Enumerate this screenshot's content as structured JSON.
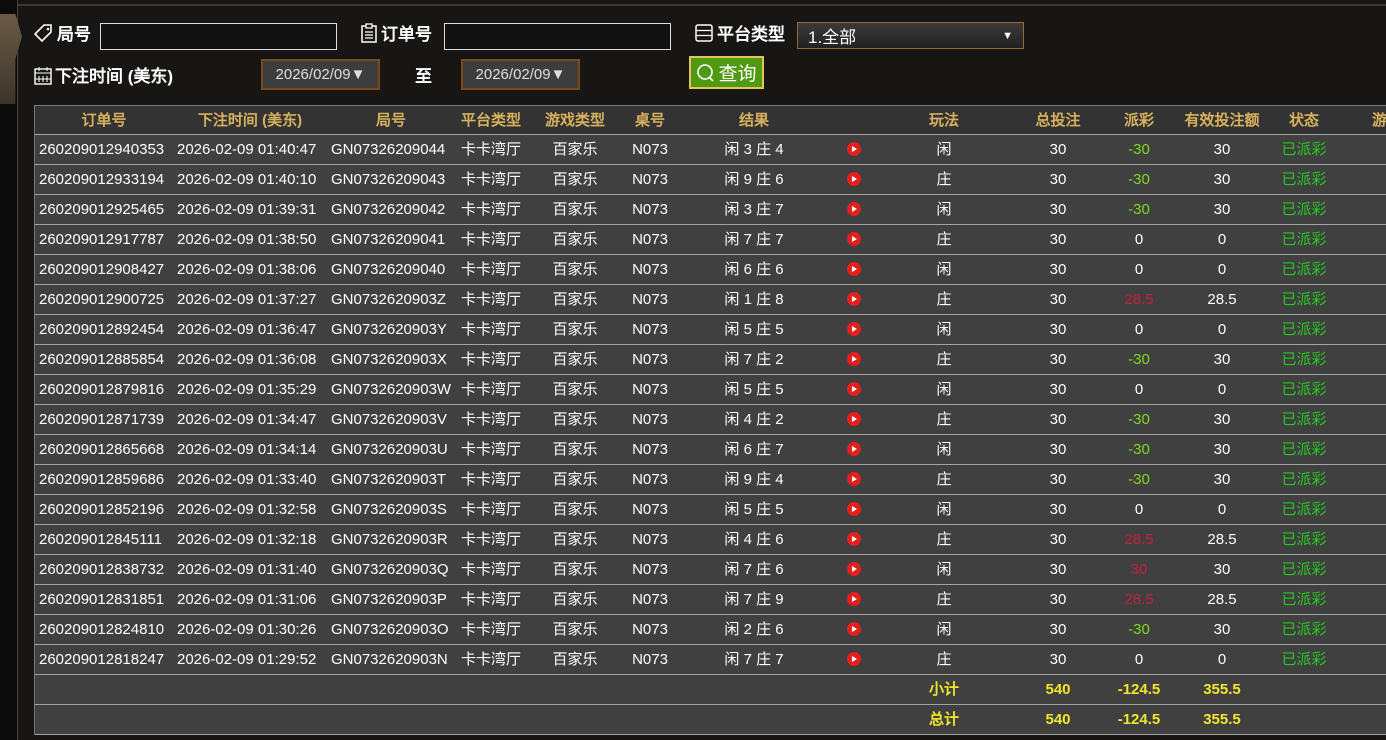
{
  "filters": {
    "round_label": "局号",
    "round_value": "",
    "order_label": "订单号",
    "order_value": "",
    "platform_label": "平台类型",
    "platform_value": "1.全部",
    "time_label": "下注时间 (美东)",
    "date_from": "2026/02/09▼",
    "to_label": "至",
    "date_to": "2026/02/09▼",
    "query_label": "查询"
  },
  "icons": {
    "round": "tag-icon",
    "order": "clipboard-icon",
    "platform": "server-icon",
    "time": "calendar-icon",
    "query": "search-icon",
    "replay": "play-icon"
  },
  "colors": {
    "header_text": "#d7b15c",
    "negative": "#7fd81b",
    "positive": "#c4203c",
    "status": "#26c81e",
    "summary": "#f0e62a",
    "query_button": "#4f9a12"
  },
  "table": {
    "headers": [
      "订单号",
      "下注时间 (美东)",
      "局号",
      "平台类型",
      "游戏类型",
      "桌号",
      "结果",
      "",
      "玩法",
      "总投注",
      "派彩",
      "有效投注额",
      "状态",
      "游戏"
    ],
    "rows": [
      [
        "260209012940353",
        "2026-02-09 01:40:47",
        "GN07326209044",
        "卡卡湾厅",
        "百家乐",
        "N073",
        "闲 3 庄 4",
        "闲",
        "30",
        "-30",
        "30",
        "已派彩"
      ],
      [
        "260209012933194",
        "2026-02-09 01:40:10",
        "GN07326209043",
        "卡卡湾厅",
        "百家乐",
        "N073",
        "闲 9 庄 6",
        "庄",
        "30",
        "-30",
        "30",
        "已派彩"
      ],
      [
        "260209012925465",
        "2026-02-09 01:39:31",
        "GN07326209042",
        "卡卡湾厅",
        "百家乐",
        "N073",
        "闲 3 庄 7",
        "闲",
        "30",
        "-30",
        "30",
        "已派彩"
      ],
      [
        "260209012917787",
        "2026-02-09 01:38:50",
        "GN07326209041",
        "卡卡湾厅",
        "百家乐",
        "N073",
        "闲 7 庄 7",
        "庄",
        "30",
        "0",
        "0",
        "已派彩"
      ],
      [
        "260209012908427",
        "2026-02-09 01:38:06",
        "GN07326209040",
        "卡卡湾厅",
        "百家乐",
        "N073",
        "闲 6 庄 6",
        "闲",
        "30",
        "0",
        "0",
        "已派彩"
      ],
      [
        "260209012900725",
        "2026-02-09 01:37:27",
        "GN0732620903Z",
        "卡卡湾厅",
        "百家乐",
        "N073",
        "闲 1 庄 8",
        "庄",
        "30",
        "28.5",
        "28.5",
        "已派彩"
      ],
      [
        "260209012892454",
        "2026-02-09 01:36:47",
        "GN0732620903Y",
        "卡卡湾厅",
        "百家乐",
        "N073",
        "闲 5 庄 5",
        "闲",
        "30",
        "0",
        "0",
        "已派彩"
      ],
      [
        "260209012885854",
        "2026-02-09 01:36:08",
        "GN0732620903X",
        "卡卡湾厅",
        "百家乐",
        "N073",
        "闲 7 庄 2",
        "庄",
        "30",
        "-30",
        "30",
        "已派彩"
      ],
      [
        "260209012879816",
        "2026-02-09 01:35:29",
        "GN0732620903W",
        "卡卡湾厅",
        "百家乐",
        "N073",
        "闲 5 庄 5",
        "闲",
        "30",
        "0",
        "0",
        "已派彩"
      ],
      [
        "260209012871739",
        "2026-02-09 01:34:47",
        "GN0732620903V",
        "卡卡湾厅",
        "百家乐",
        "N073",
        "闲 4 庄 2",
        "庄",
        "30",
        "-30",
        "30",
        "已派彩"
      ],
      [
        "260209012865668",
        "2026-02-09 01:34:14",
        "GN0732620903U",
        "卡卡湾厅",
        "百家乐",
        "N073",
        "闲 6 庄 7",
        "闲",
        "30",
        "-30",
        "30",
        "已派彩"
      ],
      [
        "260209012859686",
        "2026-02-09 01:33:40",
        "GN0732620903T",
        "卡卡湾厅",
        "百家乐",
        "N073",
        "闲 9 庄 4",
        "庄",
        "30",
        "-30",
        "30",
        "已派彩"
      ],
      [
        "260209012852196",
        "2026-02-09 01:32:58",
        "GN0732620903S",
        "卡卡湾厅",
        "百家乐",
        "N073",
        "闲 5 庄 5",
        "闲",
        "30",
        "0",
        "0",
        "已派彩"
      ],
      [
        "260209012845111",
        "2026-02-09 01:32:18",
        "GN0732620903R",
        "卡卡湾厅",
        "百家乐",
        "N073",
        "闲 4 庄 6",
        "庄",
        "30",
        "28.5",
        "28.5",
        "已派彩"
      ],
      [
        "260209012838732",
        "2026-02-09 01:31:40",
        "GN0732620903Q",
        "卡卡湾厅",
        "百家乐",
        "N073",
        "闲 7 庄 6",
        "闲",
        "30",
        "30",
        "30",
        "已派彩"
      ],
      [
        "260209012831851",
        "2026-02-09 01:31:06",
        "GN0732620903P",
        "卡卡湾厅",
        "百家乐",
        "N073",
        "闲 7 庄 9",
        "庄",
        "30",
        "28.5",
        "28.5",
        "已派彩"
      ],
      [
        "260209012824810",
        "2026-02-09 01:30:26",
        "GN0732620903O",
        "卡卡湾厅",
        "百家乐",
        "N073",
        "闲 2 庄 6",
        "闲",
        "30",
        "-30",
        "30",
        "已派彩"
      ],
      [
        "260209012818247",
        "2026-02-09 01:29:52",
        "GN0732620903N",
        "卡卡湾厅",
        "百家乐",
        "N073",
        "闲 7 庄 7",
        "庄",
        "30",
        "0",
        "0",
        "已派彩"
      ]
    ],
    "subtotal": {
      "label": "小计",
      "total_bet": "540",
      "payout": "-124.5",
      "valid_bet": "355.5"
    },
    "grandtotal": {
      "label": "总计",
      "total_bet": "540",
      "payout": "-124.5",
      "valid_bet": "355.5"
    }
  }
}
